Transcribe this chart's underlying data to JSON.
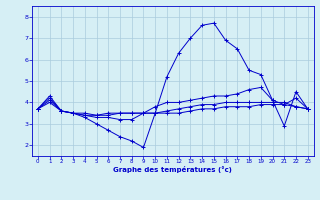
{
  "title": "",
  "xlabel": "Graphe des températures (°c)",
  "ylabel": "",
  "background_color": "#d6eff5",
  "line_color": "#0000cc",
  "grid_color": "#aaccdd",
  "xlim": [
    -0.5,
    23.5
  ],
  "ylim": [
    1.5,
    8.5
  ],
  "yticks": [
    2,
    3,
    4,
    5,
    6,
    7,
    8
  ],
  "xticks": [
    0,
    1,
    2,
    3,
    4,
    5,
    6,
    7,
    8,
    9,
    10,
    11,
    12,
    13,
    14,
    15,
    16,
    17,
    18,
    19,
    20,
    21,
    22,
    23
  ],
  "lines": [
    {
      "x": [
        0,
        1,
        2,
        3,
        4,
        5,
        6,
        7,
        8,
        9,
        10,
        11,
        12,
        13,
        14,
        15,
        16,
        17,
        18,
        19,
        20,
        21,
        22,
        23
      ],
      "y": [
        3.7,
        4.3,
        3.6,
        3.5,
        3.3,
        3.0,
        2.7,
        2.4,
        2.2,
        1.9,
        3.5,
        5.2,
        6.3,
        7.0,
        7.6,
        7.7,
        6.9,
        6.5,
        5.5,
        5.3,
        4.1,
        2.9,
        4.5,
        3.7
      ]
    },
    {
      "x": [
        0,
        1,
        2,
        3,
        4,
        5,
        6,
        7,
        8,
        9,
        10,
        11,
        12,
        13,
        14,
        15,
        16,
        17,
        18,
        19,
        20,
        21,
        22,
        23
      ],
      "y": [
        3.7,
        4.2,
        3.6,
        3.5,
        3.4,
        3.3,
        3.3,
        3.2,
        3.2,
        3.5,
        3.8,
        4.0,
        4.0,
        4.1,
        4.2,
        4.3,
        4.3,
        4.4,
        4.6,
        4.7,
        4.1,
        3.9,
        4.2,
        3.7
      ]
    },
    {
      "x": [
        0,
        1,
        2,
        3,
        4,
        5,
        6,
        7,
        8,
        9,
        10,
        11,
        12,
        13,
        14,
        15,
        16,
        17,
        18,
        19,
        20,
        21,
        22,
        23
      ],
      "y": [
        3.7,
        4.1,
        3.6,
        3.5,
        3.4,
        3.4,
        3.4,
        3.5,
        3.5,
        3.5,
        3.5,
        3.6,
        3.7,
        3.8,
        3.9,
        3.9,
        4.0,
        4.0,
        4.0,
        4.0,
        4.0,
        4.0,
        3.8,
        3.7
      ]
    },
    {
      "x": [
        0,
        1,
        2,
        3,
        4,
        5,
        6,
        7,
        8,
        9,
        10,
        11,
        12,
        13,
        14,
        15,
        16,
        17,
        18,
        19,
        20,
        21,
        22,
        23
      ],
      "y": [
        3.7,
        4.0,
        3.6,
        3.5,
        3.5,
        3.4,
        3.5,
        3.5,
        3.5,
        3.5,
        3.5,
        3.5,
        3.5,
        3.6,
        3.7,
        3.7,
        3.8,
        3.8,
        3.8,
        3.9,
        3.9,
        3.9,
        3.8,
        3.7
      ]
    }
  ]
}
